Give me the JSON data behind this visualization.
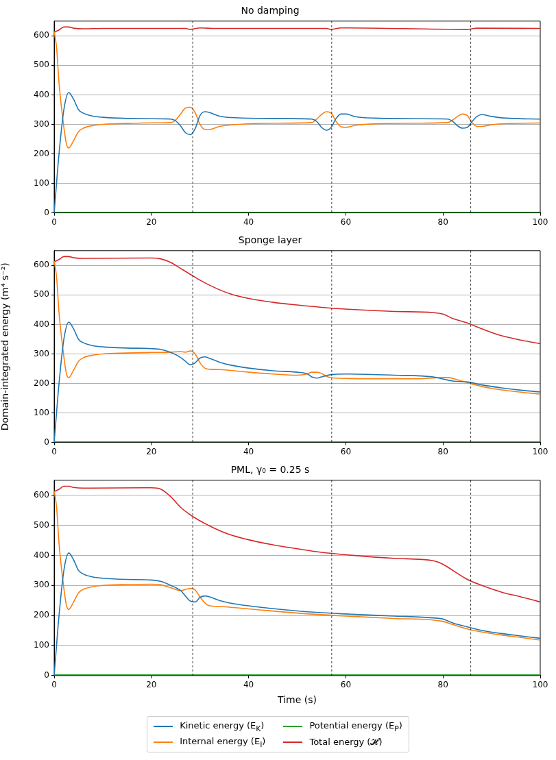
{
  "chart_data": [
    {
      "type": "line",
      "title": "No damping",
      "xlim": [
        0,
        100
      ],
      "xticks": [
        0,
        20,
        40,
        60,
        80,
        100
      ],
      "ylim": [
        0,
        650
      ],
      "yticks": [
        0,
        100,
        200,
        300,
        400,
        500,
        600
      ],
      "grid": "y",
      "legend": false,
      "ref_lines": [
        {
          "axis": "x",
          "value": 28.5,
          "color": "#000000",
          "line_style": "dashed"
        },
        {
          "axis": "x",
          "value": 57.1,
          "color": "#000000",
          "line_style": "dashed"
        },
        {
          "axis": "x",
          "value": 85.7,
          "color": "#000000",
          "line_style": "dashed"
        }
      ],
      "series": [
        {
          "color": "#1f77b4",
          "x": [
            0,
            1,
            2,
            3,
            4,
            5,
            6,
            8,
            10,
            15,
            20,
            24,
            25,
            26,
            27,
            28,
            29,
            30,
            31,
            32,
            34,
            38,
            45,
            53,
            54,
            55,
            56,
            57,
            58,
            59,
            60,
            62,
            66,
            75,
            81,
            82,
            83,
            84,
            85,
            86,
            87,
            88,
            90,
            93,
            100
          ],
          "values": [
            0,
            200,
            350,
            408,
            385,
            350,
            338,
            328,
            324,
            320,
            319,
            318,
            312,
            295,
            272,
            265,
            285,
            330,
            343,
            340,
            328,
            322,
            320,
            318,
            310,
            290,
            280,
            290,
            320,
            335,
            335,
            326,
            321,
            319,
            318,
            310,
            295,
            287,
            290,
            310,
            327,
            333,
            327,
            321,
            318
          ]
        },
        {
          "color": "#ff7f0e",
          "x": [
            0,
            0.5,
            1,
            2,
            2.5,
            3,
            4,
            5,
            6,
            8,
            10,
            15,
            20,
            24,
            25,
            26,
            27,
            28,
            29,
            30,
            31,
            32,
            34,
            38,
            45,
            53,
            54,
            55,
            56,
            57,
            58,
            59,
            60,
            62,
            66,
            75,
            81,
            82,
            83,
            84,
            85,
            86,
            87,
            88,
            90,
            100
          ],
          "values": [
            615,
            560,
            440,
            290,
            235,
            220,
            245,
            275,
            287,
            296,
            300,
            303,
            305,
            306,
            315,
            335,
            355,
            358,
            340,
            300,
            283,
            283,
            293,
            300,
            304,
            306,
            318,
            333,
            343,
            338,
            310,
            292,
            290,
            297,
            302,
            304,
            306,
            315,
            327,
            335,
            330,
            305,
            293,
            293,
            299,
            305
          ]
        },
        {
          "color": "#2ca02c",
          "x": [
            0,
            100
          ],
          "values": [
            2,
            2
          ]
        },
        {
          "color": "#d62728",
          "x": [
            0,
            1,
            2,
            3,
            4,
            6,
            10,
            27,
            28,
            30,
            33,
            56,
            57,
            59,
            85,
            87,
            100
          ],
          "values": [
            612,
            620,
            630,
            630,
            626,
            624,
            625,
            625,
            622,
            627,
            625,
            625,
            622,
            627,
            622,
            626,
            625
          ]
        }
      ]
    },
    {
      "type": "line",
      "title": "Sponge layer",
      "ylabel": "Domain-integrated energy (m⁴ s⁻²)",
      "xlim": [
        0,
        100
      ],
      "xticks": [
        0,
        20,
        40,
        60,
        80,
        100
      ],
      "ylim": [
        0,
        650
      ],
      "yticks": [
        0,
        100,
        200,
        300,
        400,
        500,
        600
      ],
      "grid": "y",
      "legend": false,
      "ref_lines": [
        {
          "axis": "x",
          "value": 28.5,
          "color": "#000000",
          "line_style": "dashed"
        },
        {
          "axis": "x",
          "value": 57.1,
          "color": "#000000",
          "line_style": "dashed"
        },
        {
          "axis": "x",
          "value": 85.7,
          "color": "#000000",
          "line_style": "dashed"
        }
      ],
      "series": [
        {
          "color": "#1f77b4",
          "x": [
            0,
            1,
            2,
            3,
            4,
            5,
            6,
            8,
            10,
            15,
            20,
            22,
            24,
            26,
            27,
            28,
            29,
            30,
            31,
            32,
            34,
            36,
            40,
            45,
            50,
            52,
            53,
            54,
            55,
            57,
            60,
            70,
            78,
            80,
            82,
            85,
            88,
            92,
            96,
            100
          ],
          "values": [
            0,
            200,
            350,
            408,
            385,
            350,
            338,
            328,
            324,
            320,
            318,
            315,
            305,
            288,
            275,
            263,
            270,
            286,
            290,
            285,
            272,
            263,
            252,
            243,
            238,
            233,
            222,
            218,
            222,
            230,
            232,
            228,
            222,
            215,
            208,
            205,
            195,
            185,
            177,
            171
          ]
        },
        {
          "color": "#ff7f0e",
          "x": [
            0,
            0.5,
            1,
            2,
            2.5,
            3,
            4,
            5,
            6,
            8,
            10,
            15,
            20,
            24,
            26,
            27,
            28,
            29,
            30,
            31,
            32,
            34,
            40,
            45,
            50,
            52,
            53,
            54,
            55,
            56,
            58,
            65,
            75,
            80,
            81,
            83,
            86,
            90,
            95,
            100
          ],
          "values": [
            615,
            560,
            440,
            290,
            235,
            220,
            245,
            275,
            287,
            296,
            300,
            303,
            305,
            306,
            308,
            306,
            310,
            300,
            270,
            252,
            248,
            247,
            238,
            232,
            228,
            232,
            238,
            238,
            234,
            224,
            218,
            216,
            216,
            220,
            220,
            212,
            198,
            183,
            172,
            164
          ]
        },
        {
          "color": "#2ca02c",
          "x": [
            0,
            100
          ],
          "values": [
            2,
            2
          ]
        },
        {
          "color": "#d62728",
          "x": [
            0,
            1,
            2,
            3,
            4,
            6,
            20,
            22,
            24,
            26,
            28,
            30,
            33,
            36,
            40,
            45,
            50,
            55,
            60,
            70,
            78,
            80,
            82,
            85,
            88,
            92,
            96,
            100
          ],
          "values": [
            612,
            620,
            630,
            630,
            626,
            624,
            625,
            622,
            610,
            590,
            570,
            550,
            525,
            505,
            488,
            475,
            466,
            458,
            452,
            444,
            440,
            435,
            420,
            405,
            385,
            362,
            347,
            335
          ]
        }
      ]
    },
    {
      "type": "line",
      "title": "PML, γ₀ = 0.25 s",
      "xlabel": "Time (s)",
      "xlim": [
        0,
        100
      ],
      "xticks": [
        0,
        20,
        40,
        60,
        80,
        100
      ],
      "ylim": [
        0,
        650
      ],
      "yticks": [
        0,
        100,
        200,
        300,
        400,
        500,
        600
      ],
      "grid": "y",
      "legend": "bottom",
      "ref_lines": [
        {
          "axis": "x",
          "value": 28.5,
          "color": "#000000",
          "line_style": "dashed"
        },
        {
          "axis": "x",
          "value": 57.1,
          "color": "#000000",
          "line_style": "dashed"
        },
        {
          "axis": "x",
          "value": 85.7,
          "color": "#000000",
          "line_style": "dashed"
        }
      ],
      "series": [
        {
          "name": "Kinetic energy (E$_{K}$)",
          "color": "#1f77b4",
          "x": [
            0,
            1,
            2,
            3,
            4,
            5,
            6,
            8,
            10,
            15,
            20,
            22,
            24,
            26,
            27,
            28,
            29,
            30,
            31,
            32,
            34,
            36,
            40,
            50,
            60,
            70,
            78,
            80,
            82,
            85,
            88,
            92,
            96,
            100
          ],
          "values": [
            0,
            200,
            350,
            408,
            385,
            350,
            338,
            328,
            324,
            320,
            318,
            313,
            300,
            283,
            265,
            248,
            245,
            260,
            265,
            262,
            250,
            242,
            232,
            215,
            205,
            198,
            192,
            188,
            175,
            162,
            150,
            140,
            132,
            124
          ]
        },
        {
          "name": "Internal energy (E$_{I}$)",
          "color": "#ff7f0e",
          "x": [
            0,
            0.5,
            1,
            2,
            2.5,
            3,
            4,
            5,
            6,
            8,
            10,
            15,
            20,
            22,
            24,
            26,
            28,
            29,
            30,
            31,
            32,
            34,
            40,
            50,
            60,
            70,
            78,
            80,
            82,
            85,
            88,
            92,
            96,
            100
          ],
          "values": [
            615,
            560,
            440,
            290,
            235,
            220,
            245,
            275,
            287,
            296,
            300,
            303,
            304,
            302,
            292,
            283,
            290,
            285,
            262,
            242,
            232,
            230,
            222,
            208,
            198,
            190,
            185,
            180,
            170,
            155,
            145,
            135,
            127,
            118
          ]
        },
        {
          "name": "Potential energy (E$_{P}$)",
          "color": "#2ca02c",
          "x": [
            0,
            100
          ],
          "values": [
            2,
            2
          ]
        },
        {
          "name": "Total energy (𝓗)",
          "color": "#d62728",
          "x": [
            0,
            1,
            2,
            3,
            4,
            6,
            20,
            22,
            24,
            26,
            28,
            30,
            33,
            36,
            40,
            45,
            50,
            55,
            60,
            70,
            78,
            80,
            82,
            85,
            88,
            92,
            96,
            100
          ],
          "values": [
            612,
            620,
            630,
            630,
            626,
            624,
            625,
            620,
            595,
            560,
            535,
            515,
            490,
            470,
            452,
            435,
            422,
            410,
            402,
            390,
            382,
            370,
            350,
            320,
            300,
            278,
            262,
            245
          ]
        }
      ]
    }
  ]
}
